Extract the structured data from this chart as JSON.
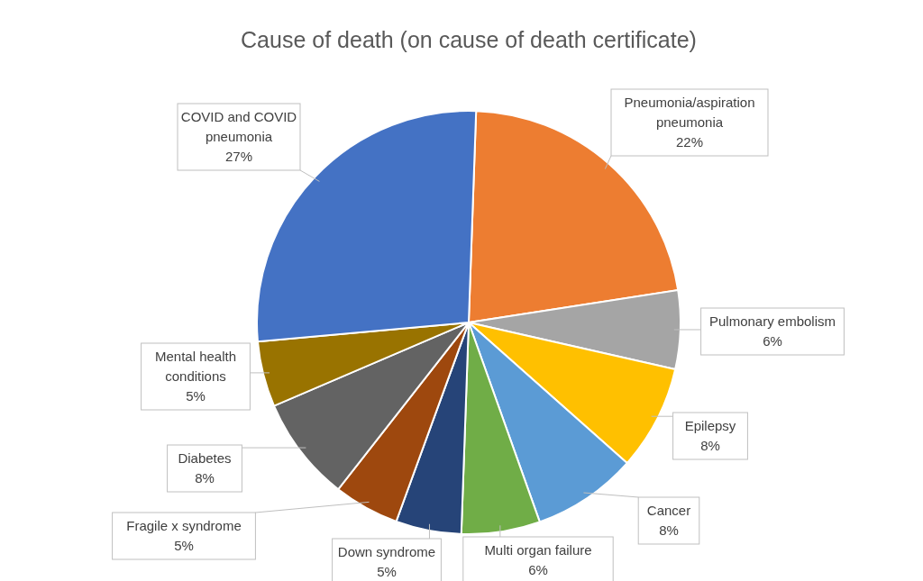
{
  "chart_data": {
    "type": "pie",
    "title": "Cause of death (on cause of death certificate)",
    "categories": [
      "Pneumonia/aspiration pneumonia",
      "Pulmonary embolism",
      "Epilepsy",
      "Cancer",
      "Multi organ failure",
      "Down syndrome",
      "Fragile x syndrome",
      "Diabetes",
      "Mental health conditions",
      "COVID and COVID pneumonia"
    ],
    "values": [
      22,
      6,
      8,
      8,
      6,
      5,
      5,
      8,
      5,
      27
    ],
    "value_labels": [
      "22%",
      "6%",
      "8%",
      "8%",
      "6%",
      "5%",
      "5%",
      "8%",
      "5%",
      "27%"
    ],
    "colors": [
      "#ed7d31",
      "#a5a5a5",
      "#ffc000",
      "#5b9bd5",
      "#70ad47",
      "#264478",
      "#9e480e",
      "#636363",
      "#997300",
      "#4472c4"
    ]
  }
}
